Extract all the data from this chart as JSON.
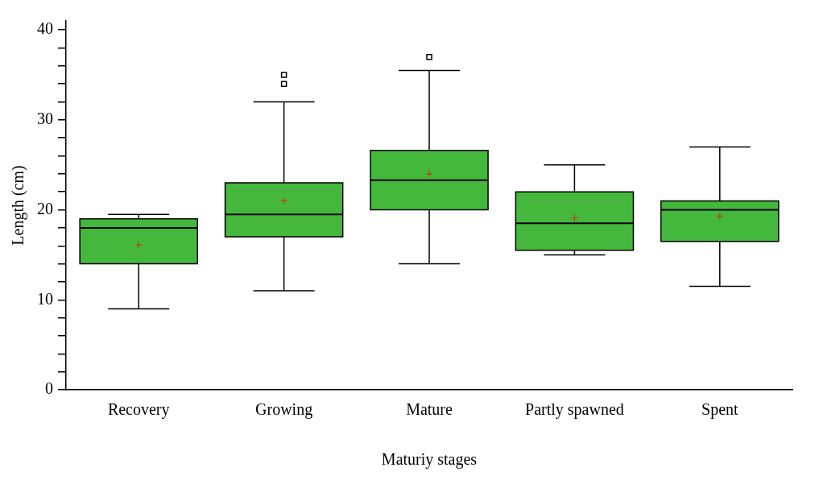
{
  "chart_data": {
    "type": "box",
    "xlabel": "Maturiy stages",
    "ylabel": "Length (cm)",
    "categories": [
      "Recovery",
      "Growing",
      "Mature",
      "Partly spawned",
      "Spent"
    ],
    "color": "#44b83d",
    "boxes": [
      {
        "low": 9,
        "q1": 14,
        "median": 18,
        "q3": 19,
        "high": 19.5,
        "mean": 16.1
      },
      {
        "low": 11,
        "q1": 17,
        "median": 19.5,
        "q3": 23,
        "high": 32,
        "mean": 21,
        "outliers": [
          34,
          35
        ]
      },
      {
        "low": 14,
        "q1": 20,
        "median": 23.3,
        "q3": 26.6,
        "high": 35.5,
        "mean": 24,
        "outliers": [
          37
        ]
      },
      {
        "low": 15,
        "q1": 15.5,
        "median": 18.5,
        "q3": 22,
        "high": 25,
        "mean": 19.1
      },
      {
        "low": 11.5,
        "q1": 16.5,
        "median": 20,
        "q3": 21,
        "high": 27,
        "mean": 19.3
      }
    ],
    "ylim": [
      0,
      41
    ],
    "yticks": [
      0,
      {
        "value": 2,
        "label": null
      },
      {
        "value": 4,
        "label": null
      },
      {
        "value": 6,
        "label": null
      },
      {
        "value": 8,
        "label": null
      },
      10,
      {
        "value": 12,
        "label": null
      },
      {
        "value": 14,
        "label": null
      },
      {
        "value": 16,
        "label": null
      },
      {
        "value": 18,
        "label": null
      },
      20,
      {
        "value": 22,
        "label": null
      },
      {
        "value": 24,
        "label": null
      },
      {
        "value": 26,
        "label": null
      },
      {
        "value": 28,
        "label": null
      },
      30,
      {
        "value": 32,
        "label": null
      },
      {
        "value": 34,
        "label": null
      },
      {
        "value": 36,
        "label": null
      },
      {
        "value": 38,
        "label": null
      },
      40
    ]
  }
}
